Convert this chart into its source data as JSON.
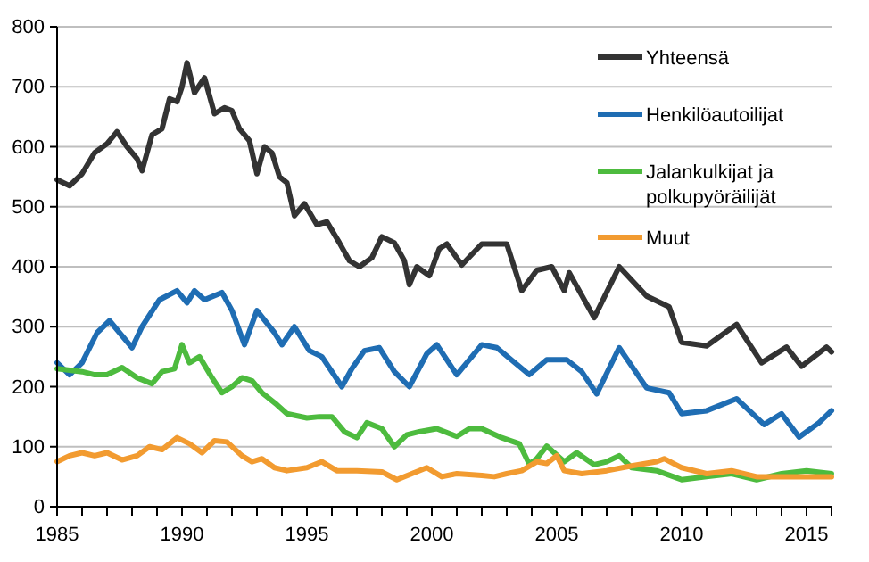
{
  "chart_data": {
    "type": "line",
    "xlim": [
      1985,
      2016
    ],
    "ylim": [
      0,
      800
    ],
    "xticks": [
      1985,
      {
        "value": 1986,
        "label": null
      },
      {
        "value": 1987,
        "label": null
      },
      {
        "value": 1988,
        "label": null
      },
      {
        "value": 1989,
        "label": null
      },
      1990,
      {
        "value": 1991,
        "label": null
      },
      {
        "value": 1992,
        "label": null
      },
      {
        "value": 1993,
        "label": null
      },
      {
        "value": 1994,
        "label": null
      },
      1995,
      {
        "value": 1996,
        "label": null
      },
      {
        "value": 1997,
        "label": null
      },
      {
        "value": 1998,
        "label": null
      },
      {
        "value": 1999,
        "label": null
      },
      2000,
      {
        "value": 2001,
        "label": null
      },
      {
        "value": 2002,
        "label": null
      },
      {
        "value": 2003,
        "label": null
      },
      {
        "value": 2004,
        "label": null
      },
      2005,
      {
        "value": 2006,
        "label": null
      },
      {
        "value": 2007,
        "label": null
      },
      {
        "value": 2008,
        "label": null
      },
      {
        "value": 2009,
        "label": null
      },
      2010,
      {
        "value": 2011,
        "label": null
      },
      {
        "value": 2012,
        "label": null
      },
      {
        "value": 2013,
        "label": null
      },
      {
        "value": 2014,
        "label": null
      },
      2015,
      {
        "value": 2016,
        "label": null
      }
    ],
    "yticks": [
      0,
      100,
      200,
      300,
      400,
      500,
      600,
      700,
      800
    ],
    "grid": "y",
    "legend": "top right",
    "line_style": "solid",
    "marker": "none",
    "series": [
      {
        "name": "Yhteensä",
        "color": "#333333",
        "x": [
          1985,
          1985.5,
          1986,
          1986.5,
          1987,
          1987.4,
          1987.8,
          1988.2,
          1988.4,
          1988.8,
          1989.2,
          1989.5,
          1989.8,
          1990,
          1990.2,
          1990.5,
          1990.9,
          1991.3,
          1991.7,
          1992,
          1992.3,
          1992.7,
          1993,
          1993.3,
          1993.6,
          1993.9,
          1994.2,
          1994.5,
          1994.9,
          1995.4,
          1995.8,
          1996.3,
          1996.7,
          1997.1,
          1997.6,
          1998,
          1998.5,
          1998.9,
          1999.1,
          1999.4,
          1999.9,
          2000.3,
          2000.6,
          2001.2,
          2002,
          2003,
          2003.6,
          2004.2,
          2004.8,
          2005.3,
          2005.5,
          2006.5,
          2007.5,
          2008.6,
          2009.5,
          2010,
          2011,
          2012.2,
          2013.2,
          2014.2,
          2014.8,
          2015.8,
          2016
        ],
        "values": [
          545,
          535,
          555,
          590,
          605,
          625,
          600,
          580,
          560,
          620,
          630,
          680,
          675,
          700,
          740,
          690,
          715,
          655,
          665,
          660,
          630,
          610,
          555,
          600,
          590,
          550,
          540,
          485,
          505,
          470,
          475,
          440,
          410,
          400,
          415,
          450,
          440,
          410,
          370,
          400,
          385,
          430,
          438,
          403,
          438,
          438,
          360,
          394,
          400,
          360,
          390,
          315,
          400,
          351,
          333,
          274,
          268,
          304,
          240,
          266,
          234,
          266,
          258
        ]
      },
      {
        "name": "Henkilöautoilijat",
        "color": "#1f6db3",
        "x": [
          1985,
          1985.5,
          1986,
          1986.6,
          1987.1,
          1987.5,
          1988,
          1988.4,
          1989.1,
          1989.8,
          1990.2,
          1990.5,
          1990.9,
          1991.6,
          1992,
          1992.5,
          1993,
          1993.7,
          1994,
          1994.5,
          1995.1,
          1995.6,
          1996.4,
          1996.8,
          1997.3,
          1997.9,
          1998.5,
          1999.1,
          1999.8,
          2000.2,
          2001,
          2002,
          2002.6,
          2003.9,
          2004.6,
          2005.4,
          2006,
          2006.6,
          2007.5,
          2008.6,
          2009.5,
          2010,
          2011,
          2012.2,
          2013.3,
          2014,
          2014.7,
          2015.5,
          2016
        ],
        "values": [
          240,
          220,
          240,
          290,
          310,
          290,
          265,
          300,
          345,
          360,
          340,
          360,
          345,
          357,
          327,
          270,
          327,
          290,
          270,
          300,
          260,
          250,
          200,
          230,
          260,
          265,
          225,
          200,
          255,
          270,
          220,
          270,
          265,
          220,
          245,
          245,
          225,
          188,
          265,
          198,
          190,
          155,
          160,
          180,
          137,
          155,
          116,
          140,
          160
        ]
      },
      {
        "name": "Jalankulkijat ja polkupyöräilijät",
        "color": "#4dbb3e",
        "x": [
          1985,
          1986,
          1986.5,
          1987,
          1987.6,
          1988.2,
          1988.8,
          1989.2,
          1989.7,
          1990,
          1990.3,
          1990.7,
          1991.2,
          1991.6,
          1992,
          1992.4,
          1992.8,
          1993.2,
          1993.8,
          1994.2,
          1995,
          1995.5,
          1996,
          1996.5,
          1997,
          1997.4,
          1998,
          1998.5,
          1999,
          1999.5,
          2000.2,
          2001,
          2001.5,
          2002,
          2002.8,
          2003.5,
          2003.9,
          2004.2,
          2004.6,
          2005.3,
          2005.8,
          2006.5,
          2007,
          2007.5,
          2008,
          2009,
          2010,
          2011,
          2012,
          2013,
          2014,
          2015,
          2016
        ],
        "values": [
          230,
          225,
          220,
          220,
          232,
          215,
          205,
          225,
          230,
          270,
          240,
          250,
          215,
          190,
          200,
          215,
          210,
          190,
          170,
          155,
          148,
          150,
          150,
          125,
          115,
          140,
          130,
          100,
          120,
          125,
          130,
          117,
          130,
          130,
          115,
          105,
          71,
          80,
          101,
          75,
          90,
          70,
          75,
          85,
          65,
          60,
          45,
          50,
          55,
          45,
          55,
          60,
          55
        ]
      },
      {
        "name": "Muut",
        "color": "#f29b30",
        "x": [
          1985,
          1985.5,
          1986,
          1986.5,
          1987,
          1987.6,
          1988.2,
          1988.7,
          1989.2,
          1989.8,
          1990.3,
          1990.8,
          1991.3,
          1991.8,
          1992.4,
          1992.8,
          1993.2,
          1993.7,
          1994.2,
          1995,
          1995.6,
          1996.2,
          1997,
          1998,
          1998.6,
          1999.2,
          1999.8,
          2000.4,
          2001,
          2002,
          2002.5,
          2003,
          2003.6,
          2004.2,
          2004.6,
          2005,
          2005.3,
          2006,
          2007,
          2008,
          2009,
          2009.3,
          2010,
          2011,
          2012,
          2013,
          2014,
          2015,
          2016
        ],
        "values": [
          75,
          85,
          90,
          85,
          90,
          78,
          85,
          100,
          95,
          115,
          105,
          90,
          110,
          108,
          85,
          75,
          80,
          65,
          60,
          65,
          75,
          60,
          60,
          58,
          45,
          55,
          65,
          50,
          55,
          52,
          50,
          55,
          60,
          75,
          72,
          85,
          60,
          55,
          60,
          68,
          75,
          80,
          65,
          55,
          60,
          50,
          50,
          50,
          50
        ]
      }
    ]
  }
}
